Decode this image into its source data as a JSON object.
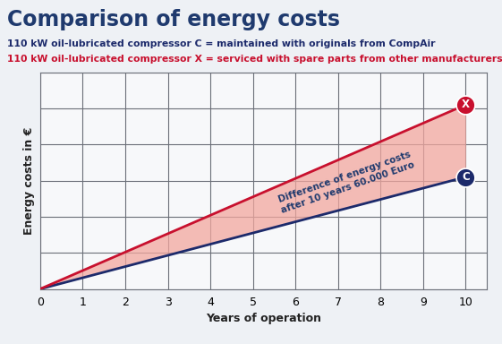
{
  "chart_data": {
    "type": "line",
    "title": "Comparison of energy costs",
    "x_label": "Years of operation",
    "y_label": "Energy costs in €",
    "annotation": "Difference of energy costs\nafter 10 years 60.000 Euro",
    "x": [
      0,
      10
    ],
    "series": [
      {
        "name": "C",
        "caption": "110 kW oil-lubricated compressor C = maintained with originals from CompAir",
        "color": "#1c2a6b",
        "values": [
          0,
          93000
        ]
      },
      {
        "name": "X",
        "caption": "110 kW oil-lubricated compressor X = serviced with spare parts from other manufacturers",
        "color": "#c8102e",
        "values": [
          0,
          153000
        ]
      }
    ],
    "xlim": [
      0,
      10.5
    ],
    "ylim": [
      0,
      180000
    ],
    "xticks": [
      0,
      1,
      2,
      3,
      4,
      5,
      6,
      7,
      8,
      9,
      10
    ],
    "yticks": [
      0,
      30000,
      60000,
      90000,
      120000,
      150000,
      180000
    ],
    "grid": true,
    "tick_labels": "x"
  }
}
